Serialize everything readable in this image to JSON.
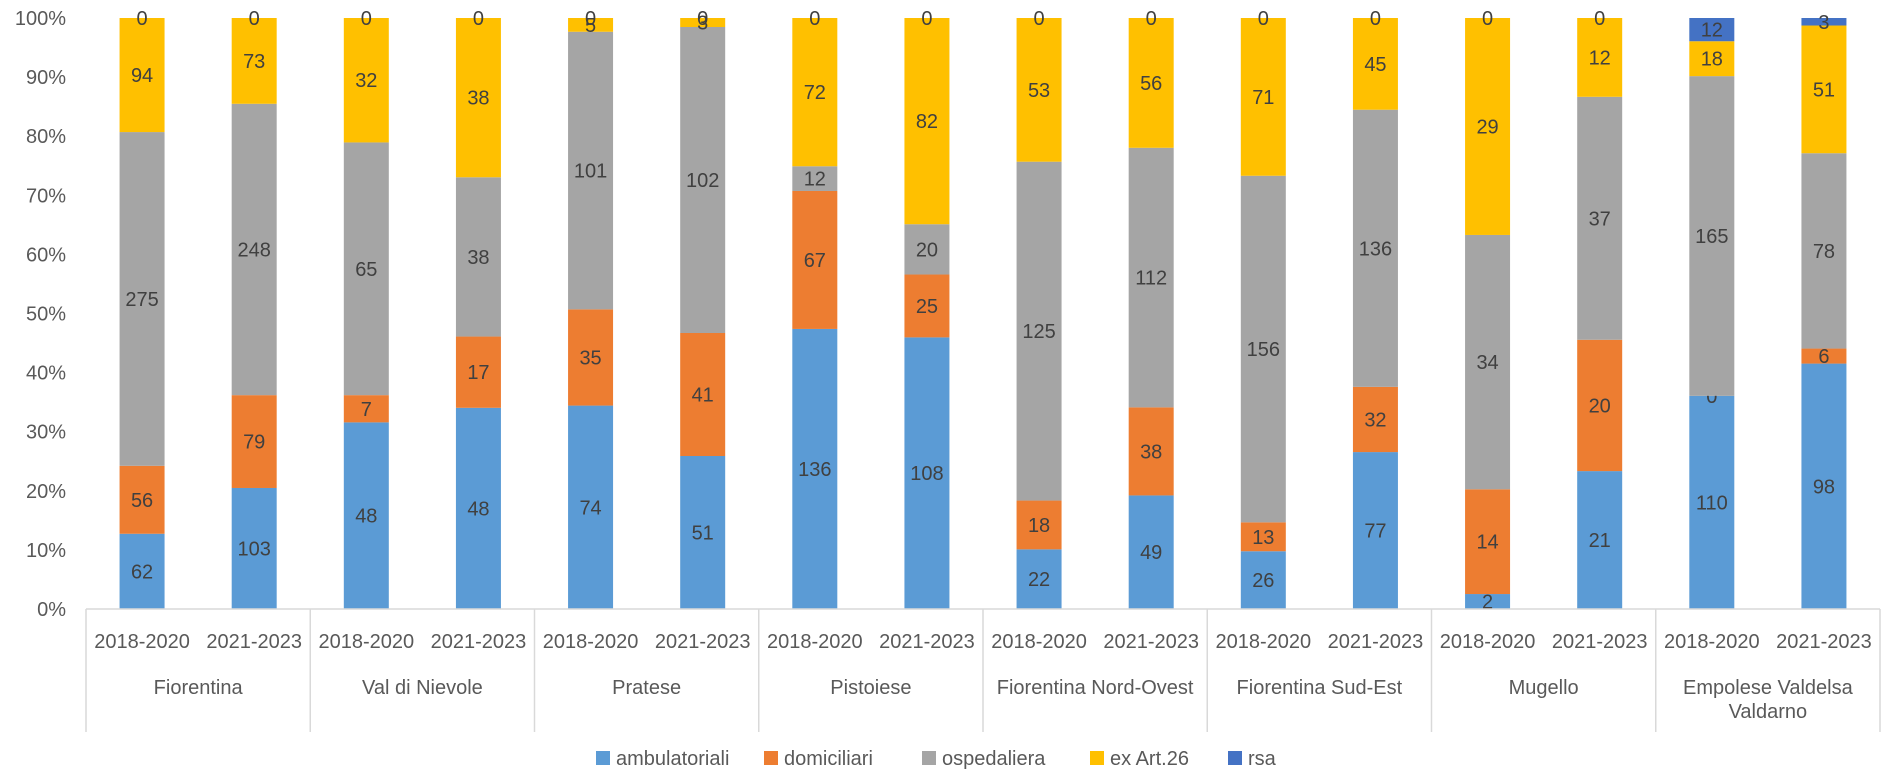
{
  "chart_data": {
    "type": "bar",
    "stacked": "percent",
    "y_ticks": [
      "0%",
      "10%",
      "20%",
      "30%",
      "40%",
      "50%",
      "60%",
      "70%",
      "80%",
      "90%",
      "100%"
    ],
    "ylim": [
      0,
      100
    ],
    "grid": false,
    "legend_position": "bottom",
    "groups": [
      {
        "name": "Fiorentina",
        "periods": [
          "2018-2020",
          "2021-2023"
        ]
      },
      {
        "name": "Val di Nievole",
        "periods": [
          "2018-2020",
          "2021-2023"
        ]
      },
      {
        "name": "Pratese",
        "periods": [
          "2018-2020",
          "2021-2023"
        ]
      },
      {
        "name": "Pistoiese",
        "periods": [
          "2018-2020",
          "2021-2023"
        ]
      },
      {
        "name": "Fiorentina Nord-Ovest",
        "periods": [
          "2018-2020",
          "2021-2023"
        ]
      },
      {
        "name": "Fiorentina Sud-Est",
        "periods": [
          "2018-2020",
          "2021-2023"
        ]
      },
      {
        "name": "Mugello",
        "periods": [
          "2018-2020",
          "2021-2023"
        ]
      },
      {
        "name": "Empolese Valdelsa Valdarno",
        "periods": [
          "2018-2020",
          "2021-2023"
        ]
      }
    ],
    "series": [
      {
        "name": "ambulatoriali",
        "color": "#5B9BD5",
        "values": [
          62,
          103,
          48,
          48,
          74,
          51,
          136,
          108,
          22,
          49,
          26,
          77,
          2,
          21,
          110,
          98
        ]
      },
      {
        "name": "domiciliari",
        "color": "#ED7D31",
        "values": [
          56,
          79,
          7,
          17,
          35,
          41,
          67,
          25,
          18,
          38,
          13,
          32,
          14,
          20,
          0,
          6
        ]
      },
      {
        "name": "ospedaliera",
        "color": "#A5A5A5",
        "values": [
          275,
          248,
          65,
          38,
          101,
          102,
          12,
          20,
          125,
          112,
          156,
          136,
          34,
          37,
          165,
          78
        ]
      },
      {
        "name": "ex Art.26",
        "color": "#FFC000",
        "values": [
          94,
          73,
          32,
          38,
          5,
          3,
          72,
          82,
          53,
          56,
          71,
          45,
          29,
          12,
          18,
          51
        ]
      },
      {
        "name": "rsa",
        "color": "#4472C4",
        "values": [
          0,
          0,
          0,
          0,
          0,
          0,
          0,
          0,
          0,
          0,
          0,
          0,
          0,
          0,
          12,
          3
        ]
      }
    ]
  }
}
